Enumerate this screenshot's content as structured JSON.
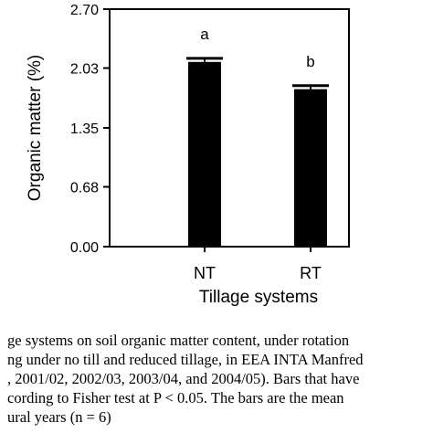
{
  "chart_data": {
    "type": "bar",
    "categories": [
      "NT",
      "RT"
    ],
    "values": [
      2.1,
      1.79
    ],
    "errors": [
      0.04,
      0.04
    ],
    "significance_letters": [
      "a",
      "b"
    ],
    "xlabel": "Tillage systems",
    "ylabel": "Organic matter (%)",
    "ylim": [
      0,
      2.7
    ],
    "yticks": [
      "0.00",
      "0.68",
      "1.35",
      "2.03",
      "2.70"
    ],
    "bar_color": "#000000",
    "grid": false
  },
  "caption": {
    "lines": [
      "ge systems on soil organic matter content, under rotation",
      "ng under no till and reduced tillage, in EEA INTA Manfred",
      ", 2001/02, 2002/03, 2003/04, and 2004/05). Bars that have",
      "cording to Fisher test at P < 0.05. The bars are the mean",
      "ural years (n = 6)"
    ]
  }
}
